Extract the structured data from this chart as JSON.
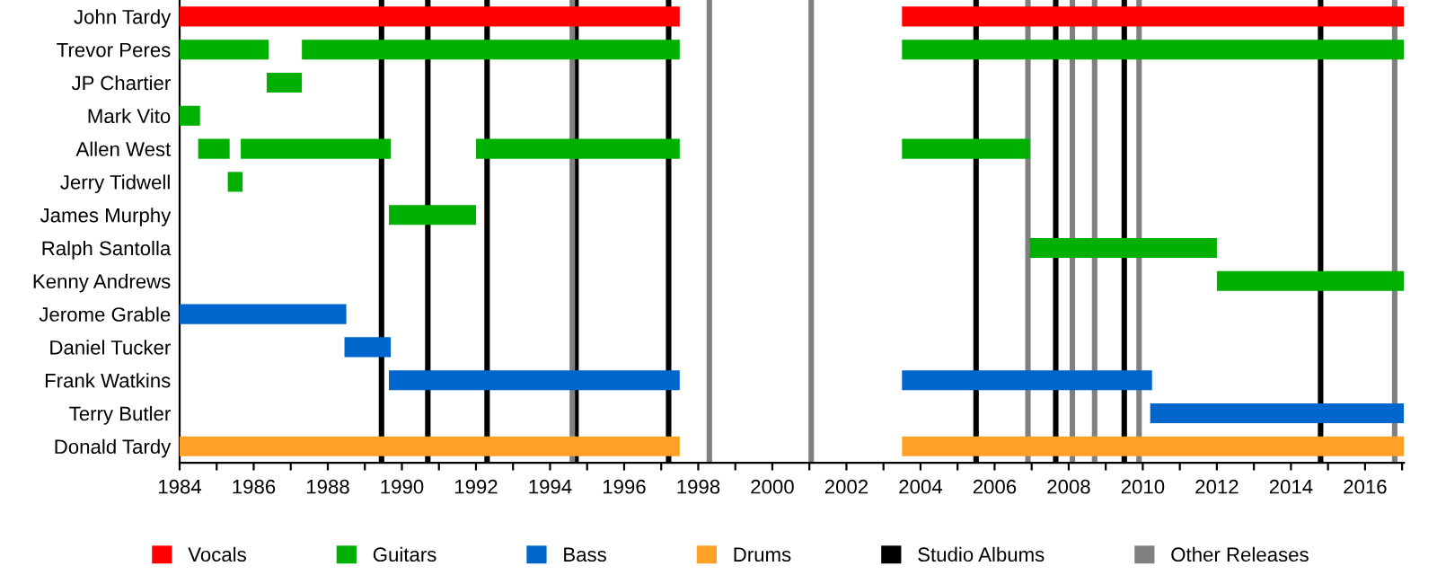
{
  "chart_data": {
    "type": "bar",
    "orientation": "horizontal",
    "legend": "bottom",
    "grid": false,
    "categories": [
      "John Tardy",
      "Trevor Peres",
      "JP Chartier",
      "Mark Vito",
      "Allen West",
      "Jerry Tidwell",
      "James Murphy",
      "Ralph Santolla",
      "Kenny Andrews",
      "Jerome Grable",
      "Daniel Tucker",
      "Frank Watkins",
      "Terry Butler",
      "Donald Tardy"
    ],
    "xlim": [
      1984,
      2017.05
    ],
    "xticks": [
      1984,
      {
        "value": 1985,
        "label": null
      },
      1986,
      {
        "value": 1987,
        "label": null
      },
      1988,
      {
        "value": 1989,
        "label": null
      },
      1990,
      {
        "value": 1991,
        "label": null
      },
      1992,
      {
        "value": 1993,
        "label": null
      },
      1994,
      {
        "value": 1995,
        "label": null
      },
      1996,
      {
        "value": 1997,
        "label": null
      },
      1998,
      {
        "value": 1999,
        "label": null
      },
      2000,
      {
        "value": 2001,
        "label": null
      },
      2002,
      {
        "value": 2003,
        "label": null
      },
      2004,
      {
        "value": 2005,
        "label": null
      },
      2006,
      {
        "value": 2007,
        "label": null
      },
      2008,
      {
        "value": 2009,
        "label": null
      },
      2010,
      {
        "value": 2011,
        "label": null
      },
      2012,
      {
        "value": 2013,
        "label": null
      },
      2014,
      {
        "value": 2015,
        "label": null
      },
      2016,
      {
        "value": 2017,
        "label": null
      }
    ],
    "series": [
      {
        "name": "Vocals",
        "color": "#ff0000",
        "base": [
          1984,
          null,
          null,
          null,
          null,
          null,
          null,
          null,
          null,
          null,
          null,
          null,
          null,
          null
        ],
        "values": [
          13.5,
          null,
          null,
          null,
          null,
          null,
          null,
          null,
          null,
          null,
          null,
          null,
          null,
          null
        ]
      },
      {
        "color": "#ff0000",
        "base": [
          2003.5,
          null,
          null,
          null,
          null,
          null,
          null,
          null,
          null,
          null,
          null,
          null,
          null,
          null
        ],
        "values": [
          13.55,
          null,
          null,
          null,
          null,
          null,
          null,
          null,
          null,
          null,
          null,
          null,
          null,
          null
        ]
      },
      {
        "name": "Guitars",
        "color": "#00b000",
        "base": [
          null,
          1984,
          1986.35,
          1984,
          1984.5,
          1985.3,
          1989.65,
          2006.95,
          2012,
          null,
          null,
          null,
          null,
          null
        ],
        "values": [
          null,
          2.4,
          0.95,
          0.55,
          0.85,
          0.4,
          2.35,
          5.05,
          5.05,
          null,
          null,
          null,
          null,
          null
        ]
      },
      {
        "color": "#00b000",
        "base": [
          null,
          1987.3,
          null,
          null,
          1985.65,
          null,
          null,
          null,
          null,
          null,
          null,
          null,
          null,
          null
        ],
        "values": [
          null,
          10.2,
          null,
          null,
          4.05,
          null,
          null,
          null,
          null,
          null,
          null,
          null,
          null,
          null
        ]
      },
      {
        "color": "#00b000",
        "base": [
          null,
          2003.5,
          null,
          null,
          1992,
          null,
          null,
          null,
          null,
          null,
          null,
          null,
          null,
          null
        ],
        "values": [
          null,
          13.55,
          null,
          null,
          5.5,
          null,
          null,
          null,
          null,
          null,
          null,
          null,
          null,
          null
        ]
      },
      {
        "color": "#00b000",
        "base": [
          null,
          null,
          null,
          null,
          2003.5,
          null,
          null,
          null,
          null,
          null,
          null,
          null,
          null,
          null
        ],
        "values": [
          null,
          null,
          null,
          null,
          3.45,
          null,
          null,
          null,
          null,
          null,
          null,
          null,
          null,
          null
        ]
      },
      {
        "name": "Bass",
        "color": "#0066cc",
        "base": [
          null,
          null,
          null,
          null,
          null,
          null,
          null,
          null,
          null,
          1984,
          1988.45,
          1989.65,
          2010.2,
          null
        ],
        "values": [
          null,
          null,
          null,
          null,
          null,
          null,
          null,
          null,
          null,
          4.5,
          1.25,
          7.85,
          6.85,
          null
        ]
      },
      {
        "color": "#0066cc",
        "base": [
          null,
          null,
          null,
          null,
          null,
          null,
          null,
          null,
          null,
          null,
          null,
          2003.5,
          null,
          null
        ],
        "values": [
          null,
          null,
          null,
          null,
          null,
          null,
          null,
          null,
          null,
          null,
          null,
          6.75,
          null,
          null
        ]
      },
      {
        "name": "Drums",
        "color": "#ffa126",
        "base": [
          null,
          null,
          null,
          null,
          null,
          null,
          null,
          null,
          null,
          null,
          null,
          null,
          null,
          1984
        ],
        "values": [
          null,
          null,
          null,
          null,
          null,
          null,
          null,
          null,
          null,
          null,
          null,
          null,
          null,
          13.5
        ]
      },
      {
        "color": "#ffa126",
        "base": [
          null,
          null,
          null,
          null,
          null,
          null,
          null,
          null,
          null,
          null,
          null,
          null,
          null,
          2003.5
        ],
        "values": [
          null,
          null,
          null,
          null,
          null,
          null,
          null,
          null,
          null,
          null,
          null,
          null,
          null,
          13.55
        ]
      }
    ],
    "ref_lines": [
      {
        "axis": "x",
        "value": 1989.45,
        "label": "Studio Albums",
        "color": "#000000"
      },
      {
        "axis": "x",
        "value": 1990.7,
        "color": "#000000"
      },
      {
        "axis": "x",
        "value": 1992.3,
        "color": "#000000"
      },
      {
        "axis": "x",
        "value": 1994.7,
        "color": "#000000"
      },
      {
        "axis": "x",
        "value": 1997.2,
        "color": "#000000"
      },
      {
        "axis": "x",
        "value": 2005.5,
        "color": "#000000"
      },
      {
        "axis": "x",
        "value": 2007.65,
        "color": "#000000"
      },
      {
        "axis": "x",
        "value": 2009.5,
        "color": "#000000"
      },
      {
        "axis": "x",
        "value": 2014.8,
        "color": "#000000"
      },
      {
        "axis": "x",
        "value": 1994.6,
        "label": "Other Releases",
        "color": "#808080"
      },
      {
        "axis": "x",
        "value": 1998.3,
        "color": "#808080"
      },
      {
        "axis": "x",
        "value": 2001.05,
        "color": "#808080"
      },
      {
        "axis": "x",
        "value": 2006.9,
        "color": "#808080"
      },
      {
        "axis": "x",
        "value": 2008.1,
        "color": "#808080"
      },
      {
        "axis": "x",
        "value": 2008.7,
        "color": "#808080"
      },
      {
        "axis": "x",
        "value": 2009.9,
        "color": "#808080"
      },
      {
        "axis": "x",
        "value": 2016.8,
        "color": "#808080"
      }
    ]
  }
}
